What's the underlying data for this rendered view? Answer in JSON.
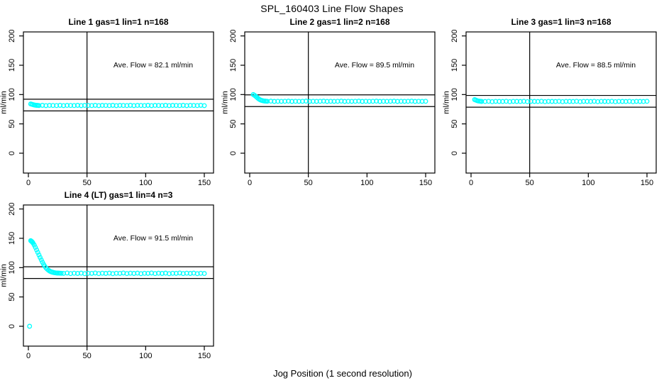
{
  "page": {
    "title": "SPL_160403  Line Flow Shapes",
    "xlabel": "Jog Position (1 second resolution)",
    "background": "#FFFFFF",
    "marker_color": "#00FFFF",
    "line_color": "#000000"
  },
  "chart_data": [
    {
      "type": "scatter",
      "title": "Line 1 gas=1 lin=1 n=168",
      "line": 1,
      "gas": 1,
      "lin": 1,
      "n": 168,
      "annotation": "Ave. Flow =  82.1  ml/min",
      "ave_flow_ml_min": 82.1,
      "ylabel": "ml/min",
      "x_ticks": [
        0,
        50,
        100,
        150
      ],
      "y_ticks": [
        0,
        50,
        100,
        150,
        200
      ],
      "vline_x": 50,
      "hlines_y": [
        92.1,
        72.1
      ],
      "marker_color": "#00FFFF",
      "points": [
        [
          2,
          84
        ],
        [
          3,
          83.3
        ],
        [
          4,
          82.7
        ],
        [
          5,
          82.2
        ],
        [
          6,
          81.9
        ],
        [
          7,
          81.7
        ],
        [
          8,
          81.5
        ],
        [
          9,
          81.3
        ],
        [
          12,
          81.6
        ],
        [
          15,
          81.2
        ],
        [
          18,
          81.5
        ],
        [
          21,
          81.4
        ],
        [
          24,
          81.3
        ],
        [
          27,
          81.6
        ],
        [
          30,
          81.2
        ],
        [
          33,
          81.5
        ],
        [
          36,
          81.4
        ],
        [
          39,
          81.3
        ],
        [
          42,
          81.6
        ],
        [
          45,
          81.2
        ],
        [
          48,
          81.5
        ],
        [
          51,
          81.4
        ],
        [
          54,
          81.3
        ],
        [
          57,
          81.6
        ],
        [
          60,
          81.2
        ],
        [
          63,
          81.5
        ],
        [
          66,
          81.4
        ],
        [
          69,
          81.3
        ],
        [
          72,
          81.6
        ],
        [
          75,
          81.2
        ],
        [
          78,
          81.5
        ],
        [
          81,
          81.4
        ],
        [
          84,
          81.3
        ],
        [
          87,
          81.6
        ],
        [
          90,
          81.2
        ],
        [
          93,
          81.5
        ],
        [
          96,
          81.4
        ],
        [
          99,
          81.3
        ],
        [
          102,
          81.6
        ],
        [
          105,
          81.2
        ],
        [
          108,
          81.5
        ],
        [
          111,
          81.4
        ],
        [
          114,
          81.3
        ],
        [
          117,
          81.6
        ],
        [
          120,
          81.2
        ],
        [
          123,
          81.5
        ],
        [
          126,
          81.4
        ],
        [
          129,
          81.3
        ],
        [
          132,
          81.6
        ],
        [
          135,
          81.2
        ],
        [
          138,
          81.5
        ],
        [
          141,
          81.4
        ],
        [
          144,
          81.3
        ],
        [
          147,
          81.6
        ],
        [
          150,
          81.2
        ]
      ]
    },
    {
      "type": "scatter",
      "title": "Line 2 gas=1 lin=2 n=168",
      "line": 2,
      "gas": 1,
      "lin": 2,
      "n": 168,
      "annotation": "Ave. Flow =  89.5  ml/min",
      "ave_flow_ml_min": 89.5,
      "ylabel": "ml/min",
      "x_ticks": [
        0,
        50,
        100,
        150
      ],
      "y_ticks": [
        0,
        50,
        100,
        150,
        200
      ],
      "vline_x": 50,
      "hlines_y": [
        99.5,
        79.5
      ],
      "marker_color": "#00FFFF",
      "points": [
        [
          3,
          100
        ],
        [
          4,
          98.8
        ],
        [
          5,
          97.2
        ],
        [
          6,
          95.4
        ],
        [
          7,
          93.6
        ],
        [
          8,
          92.2
        ],
        [
          9,
          91.0
        ],
        [
          10,
          90.2
        ],
        [
          11,
          89.6
        ],
        [
          12,
          89.2
        ],
        [
          13,
          88.9
        ],
        [
          14,
          88.7
        ],
        [
          15,
          88.5
        ],
        [
          18,
          88.8
        ],
        [
          21,
          88.3
        ],
        [
          24,
          88.6
        ],
        [
          27,
          88.4
        ],
        [
          30,
          88.5
        ],
        [
          33,
          88.8
        ],
        [
          36,
          88.3
        ],
        [
          39,
          88.6
        ],
        [
          42,
          88.4
        ],
        [
          45,
          88.5
        ],
        [
          48,
          88.8
        ],
        [
          51,
          88.3
        ],
        [
          54,
          88.6
        ],
        [
          57,
          88.4
        ],
        [
          60,
          88.5
        ],
        [
          63,
          88.8
        ],
        [
          66,
          88.3
        ],
        [
          69,
          88.6
        ],
        [
          72,
          88.4
        ],
        [
          75,
          88.5
        ],
        [
          78,
          88.8
        ],
        [
          81,
          88.3
        ],
        [
          84,
          88.6
        ],
        [
          87,
          88.4
        ],
        [
          90,
          88.5
        ],
        [
          93,
          88.8
        ],
        [
          96,
          88.3
        ],
        [
          99,
          88.6
        ],
        [
          102,
          88.4
        ],
        [
          105,
          88.5
        ],
        [
          108,
          88.8
        ],
        [
          111,
          88.3
        ],
        [
          114,
          88.6
        ],
        [
          117,
          88.4
        ],
        [
          120,
          88.5
        ],
        [
          123,
          88.8
        ],
        [
          126,
          88.3
        ],
        [
          129,
          88.6
        ],
        [
          132,
          88.4
        ],
        [
          135,
          88.5
        ],
        [
          138,
          88.8
        ],
        [
          141,
          88.3
        ],
        [
          144,
          88.6
        ],
        [
          147,
          88.4
        ],
        [
          150,
          88.5
        ]
      ]
    },
    {
      "type": "scatter",
      "title": "Line 3 gas=1 lin=3 n=168",
      "line": 3,
      "gas": 1,
      "lin": 3,
      "n": 168,
      "annotation": "Ave. Flow =  88.5  ml/min",
      "ave_flow_ml_min": 88.5,
      "ylabel": "ml/min",
      "x_ticks": [
        0,
        50,
        100,
        150
      ],
      "y_ticks": [
        0,
        50,
        100,
        150,
        200
      ],
      "vline_x": 50,
      "hlines_y": [
        98.5,
        78.5
      ],
      "marker_color": "#00FFFF",
      "points": [
        [
          3,
          91.5
        ],
        [
          4,
          90.6
        ],
        [
          5,
          89.8
        ],
        [
          6,
          89.2
        ],
        [
          7,
          88.8
        ],
        [
          8,
          88.5
        ],
        [
          9,
          88.3
        ],
        [
          12,
          88.2
        ],
        [
          15,
          88.5
        ],
        [
          18,
          88.0
        ],
        [
          21,
          88.4
        ],
        [
          24,
          88.3
        ],
        [
          27,
          88.2
        ],
        [
          30,
          88.5
        ],
        [
          33,
          88.0
        ],
        [
          36,
          88.4
        ],
        [
          39,
          88.3
        ],
        [
          42,
          88.2
        ],
        [
          45,
          88.5
        ],
        [
          48,
          88.0
        ],
        [
          51,
          88.4
        ],
        [
          54,
          88.3
        ],
        [
          57,
          88.2
        ],
        [
          60,
          88.5
        ],
        [
          63,
          88.0
        ],
        [
          66,
          88.4
        ],
        [
          69,
          88.3
        ],
        [
          72,
          88.2
        ],
        [
          75,
          88.5
        ],
        [
          78,
          88.0
        ],
        [
          81,
          88.4
        ],
        [
          84,
          88.3
        ],
        [
          87,
          88.2
        ],
        [
          90,
          88.5
        ],
        [
          93,
          88.0
        ],
        [
          96,
          88.4
        ],
        [
          99,
          88.3
        ],
        [
          102,
          88.2
        ],
        [
          105,
          88.5
        ],
        [
          108,
          88.0
        ],
        [
          111,
          88.4
        ],
        [
          114,
          88.3
        ],
        [
          117,
          88.2
        ],
        [
          120,
          88.5
        ],
        [
          123,
          88.0
        ],
        [
          126,
          88.4
        ],
        [
          129,
          88.3
        ],
        [
          132,
          88.2
        ],
        [
          135,
          88.5
        ],
        [
          138,
          88.0
        ],
        [
          141,
          88.4
        ],
        [
          144,
          88.3
        ],
        [
          147,
          88.2
        ],
        [
          150,
          88.5
        ]
      ]
    },
    {
      "type": "scatter",
      "title": "Line 4 (LT) gas=1 lin=4 n=3",
      "line": 4,
      "line_note": "LT",
      "gas": 1,
      "lin": 4,
      "n": 3,
      "annotation": "Ave. Flow =  91.5  ml/min",
      "ave_flow_ml_min": 91.5,
      "ylabel": "ml/min",
      "x_ticks": [
        0,
        50,
        100,
        150
      ],
      "y_ticks": [
        0,
        50,
        100,
        150,
        200
      ],
      "vline_x": 50,
      "hlines_y": [
        101.5,
        81.5
      ],
      "marker_color": "#00FFFF",
      "points": [
        [
          1,
          0
        ],
        [
          2,
          146
        ],
        [
          2.5,
          145.2
        ],
        [
          3,
          144.3
        ],
        [
          3.5,
          143.2
        ],
        [
          4,
          141.8
        ],
        [
          5,
          138.5
        ],
        [
          6,
          134.5
        ],
        [
          7,
          130.3
        ],
        [
          8,
          126
        ],
        [
          9,
          121.7
        ],
        [
          10,
          117.4
        ],
        [
          11,
          113.2
        ],
        [
          12,
          109.2
        ],
        [
          13,
          105.5
        ],
        [
          14,
          102.3
        ],
        [
          15,
          99.6
        ],
        [
          16,
          97.5
        ],
        [
          17,
          95.8
        ],
        [
          18,
          94.4
        ],
        [
          19,
          93.3
        ],
        [
          20,
          92.5
        ],
        [
          21,
          91.9
        ],
        [
          22,
          91.4
        ],
        [
          23,
          91.1
        ],
        [
          24,
          90.9
        ],
        [
          25,
          90.7
        ],
        [
          26,
          90.6
        ],
        [
          27,
          90.5
        ],
        [
          28,
          90.4
        ],
        [
          30,
          90.2
        ],
        [
          33,
          90.8
        ],
        [
          36,
          89.9
        ],
        [
          39,
          90.5
        ],
        [
          42,
          90.1
        ],
        [
          45,
          90.6
        ],
        [
          48,
          89.8
        ],
        [
          51,
          90.4
        ],
        [
          54,
          90.2
        ],
        [
          57,
          90.8
        ],
        [
          60,
          89.9
        ],
        [
          63,
          90.5
        ],
        [
          66,
          90.1
        ],
        [
          69,
          90.6
        ],
        [
          72,
          89.8
        ],
        [
          75,
          90.4
        ],
        [
          78,
          90.2
        ],
        [
          81,
          90.8
        ],
        [
          84,
          89.9
        ],
        [
          87,
          90.5
        ],
        [
          90,
          90.1
        ],
        [
          93,
          90.6
        ],
        [
          96,
          89.8
        ],
        [
          99,
          90.4
        ],
        [
          102,
          90.2
        ],
        [
          105,
          90.8
        ],
        [
          108,
          89.9
        ],
        [
          111,
          90.5
        ],
        [
          114,
          90.1
        ],
        [
          117,
          90.6
        ],
        [
          120,
          89.8
        ],
        [
          123,
          90.4
        ],
        [
          126,
          90.2
        ],
        [
          129,
          90.8
        ],
        [
          132,
          89.9
        ],
        [
          135,
          90.5
        ],
        [
          138,
          90.1
        ],
        [
          141,
          90.6
        ],
        [
          144,
          89.8
        ],
        [
          147,
          90.4
        ],
        [
          150,
          90.0
        ]
      ]
    }
  ]
}
